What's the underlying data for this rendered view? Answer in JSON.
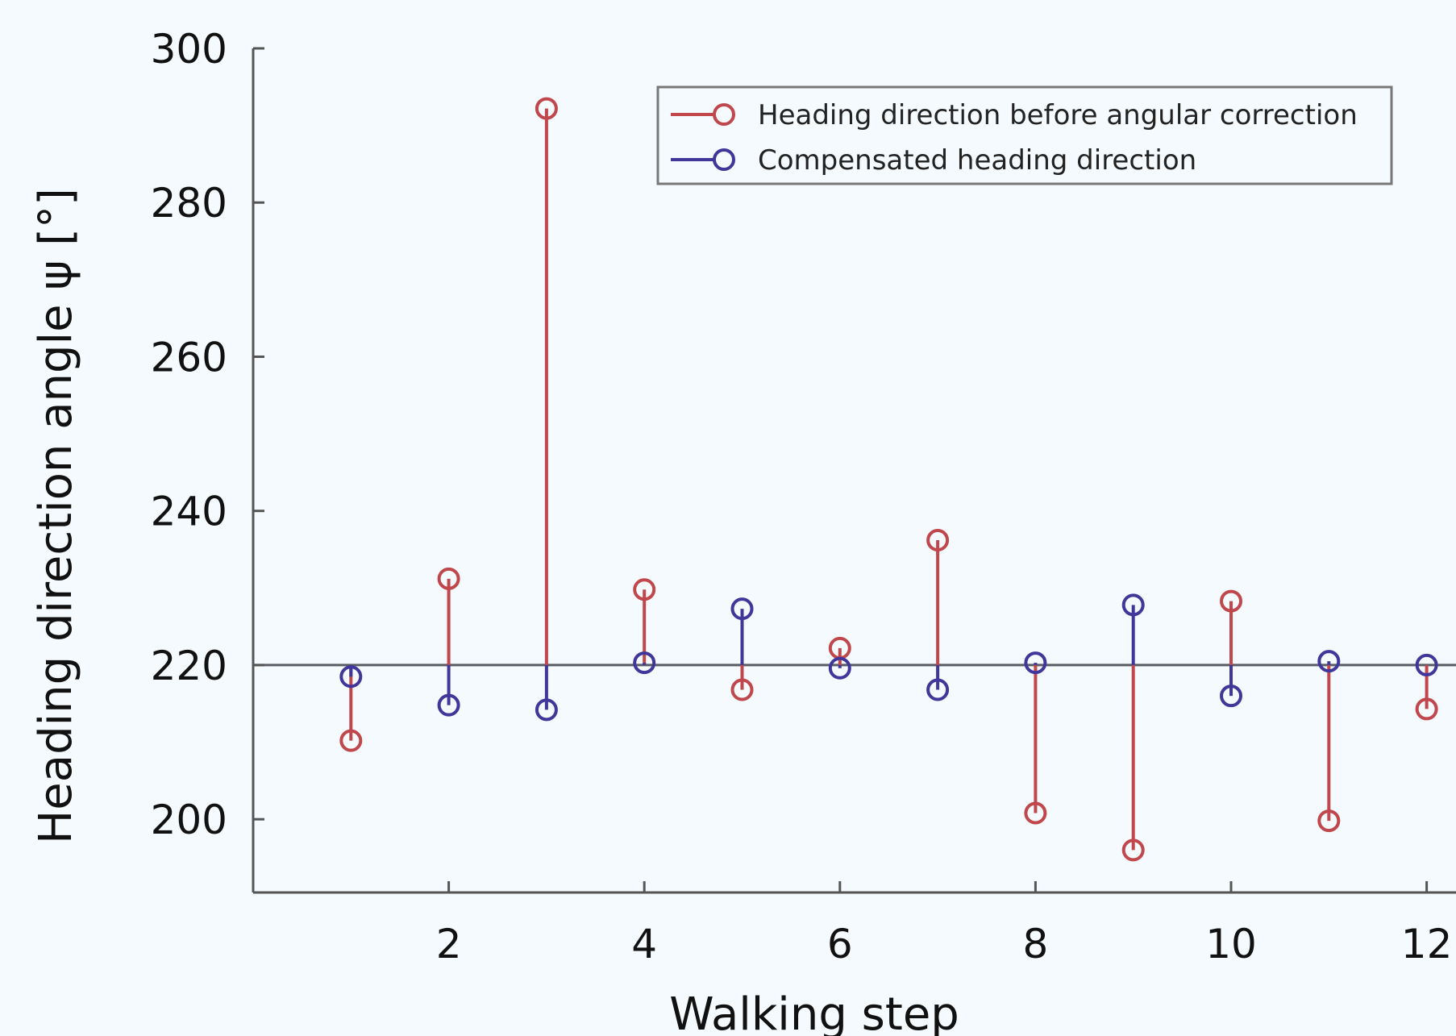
{
  "chart_data": {
    "type": "stem",
    "xlabel": "Walking step",
    "ylabel": "Heading direction angle ψ [°]",
    "baseline": 220,
    "xlim": [
      0,
      12.3
    ],
    "ylim": [
      190.5,
      300
    ],
    "xticks": [
      2,
      4,
      6,
      8,
      10,
      12
    ],
    "yticks": [
      200,
      220,
      240,
      260,
      280,
      300
    ],
    "grid": false,
    "legend_position": "top-right",
    "x": [
      1,
      2,
      3,
      4,
      5,
      6,
      7,
      8,
      9,
      10,
      11,
      12
    ],
    "series": [
      {
        "name": "Heading direction before angular correction",
        "color": "#c0474c",
        "values": [
          210.2,
          231.2,
          292.2,
          229.8,
          216.8,
          222.2,
          236.2,
          200.8,
          196.0,
          228.3,
          199.8,
          214.3
        ]
      },
      {
        "name": "Compensated heading direction",
        "color": "#41379a",
        "values": [
          218.5,
          214.8,
          214.2,
          220.3,
          227.3,
          219.6,
          216.8,
          220.3,
          227.8,
          216.0,
          220.5,
          220.0
        ]
      }
    ]
  }
}
